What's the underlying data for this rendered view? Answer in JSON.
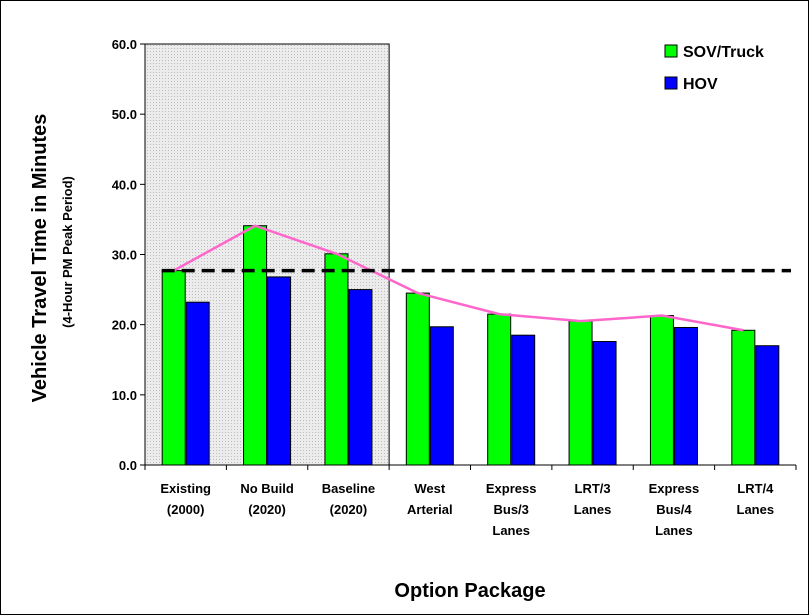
{
  "chart_data": {
    "type": "bar",
    "title": "",
    "xlabel": "Option Package",
    "ylabel": "Vehicle Travel Time in Minutes",
    "ylabel_sub": "(4-Hour PM Peak Period)",
    "ylim": [
      0,
      60
    ],
    "yticks": [
      "0.0",
      "10.0",
      "20.0",
      "30.0",
      "40.0",
      "50.0",
      "60.0"
    ],
    "categories": [
      [
        "Existing",
        "(2000)"
      ],
      [
        "No Build",
        "(2020)"
      ],
      [
        "Baseline",
        "(2020)"
      ],
      [
        "West",
        "Arterial"
      ],
      [
        "Express",
        "Bus/3",
        "Lanes"
      ],
      [
        "LRT/3",
        "Lanes"
      ],
      [
        "Express",
        "Bus/4",
        "Lanes"
      ],
      [
        "LRT/4",
        "Lanes"
      ]
    ],
    "series": [
      {
        "name": "SOV/Truck",
        "color": "#00ff00",
        "values": [
          27.7,
          34.1,
          30.1,
          24.5,
          21.5,
          20.5,
          21.3,
          19.2
        ]
      },
      {
        "name": "HOV",
        "color": "#0000ff",
        "values": [
          23.2,
          26.8,
          25.0,
          19.7,
          18.5,
          17.6,
          19.6,
          17.0
        ]
      }
    ],
    "trend_line": {
      "color": "#ff66cc",
      "follows_series": "SOV/Truck"
    },
    "reference_line": {
      "value": 27.7,
      "style": "dashed",
      "color": "#000000"
    },
    "shaded_region": {
      "from_category": 0,
      "to_category": 2,
      "color": "#dedede"
    },
    "legend": "top-right",
    "grid": false
  }
}
